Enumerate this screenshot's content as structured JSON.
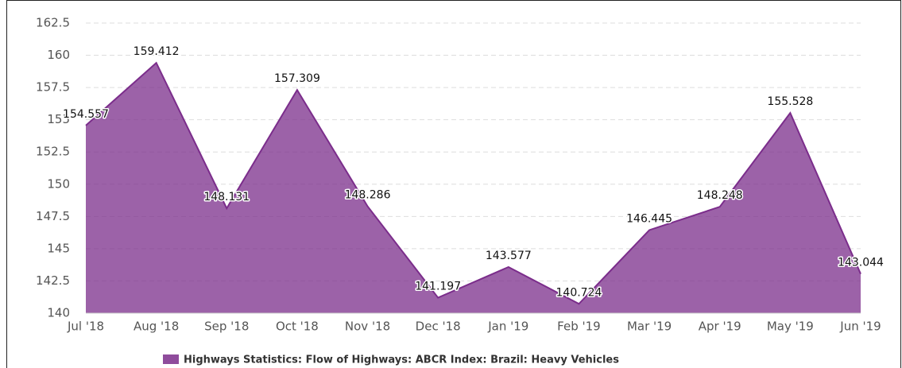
{
  "chart_data": {
    "type": "area",
    "categories": [
      "Jul '18",
      "Aug '18",
      "Sep '18",
      "Oct '18",
      "Nov '18",
      "Dec '18",
      "Jan '19",
      "Feb '19",
      "Mar '19",
      "Apr '19",
      "May '19",
      "Jun '19"
    ],
    "series": [
      {
        "name": "Highways Statistics: Flow of Highways: ABCR Index: Brazil: Heavy Vehicles",
        "color": "#7b2d8b",
        "values": [
          154.557,
          159.412,
          148.131,
          157.309,
          148.286,
          141.197,
          143.577,
          140.724,
          146.445,
          148.248,
          155.528,
          143.044
        ]
      }
    ],
    "ylim": [
      140,
      162.5
    ],
    "yticks": [
      140,
      142.5,
      145,
      147.5,
      150,
      152.5,
      155,
      157.5,
      160,
      162.5
    ],
    "grid": true,
    "legend": "bottom"
  }
}
